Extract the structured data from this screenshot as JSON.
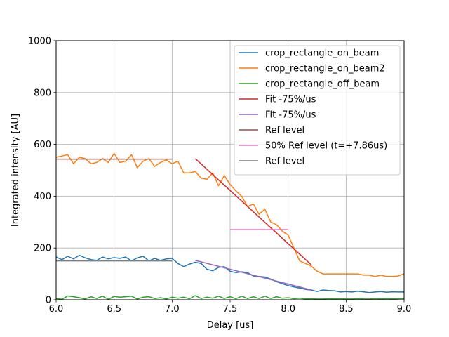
{
  "chart_data": {
    "type": "line",
    "title": "",
    "xlabel": "Delay [us]",
    "ylabel": "Integrated intensity [AU]",
    "xlim": [
      6.0,
      9.0
    ],
    "ylim": [
      0,
      1000
    ],
    "xticks": [
      6.0,
      6.5,
      7.0,
      7.5,
      8.0,
      8.5,
      9.0
    ],
    "xtick_labels": [
      "6.0",
      "6.5",
      "7.0",
      "7.5",
      "8.0",
      "8.5",
      "9.0"
    ],
    "yticks": [
      0,
      200,
      400,
      600,
      800,
      1000
    ],
    "ytick_labels": [
      "0",
      "200",
      "400",
      "600",
      "800",
      "1000"
    ],
    "grid": true,
    "legend_position": "top-right",
    "series": [
      {
        "name": "crop_rectangle_on_beam",
        "color": "#1f77b4",
        "x": [
          6.0,
          6.05,
          6.1,
          6.15,
          6.2,
          6.25,
          6.3,
          6.35,
          6.4,
          6.45,
          6.5,
          6.55,
          6.6,
          6.65,
          6.7,
          6.75,
          6.8,
          6.85,
          6.9,
          6.95,
          7.0,
          7.05,
          7.1,
          7.15,
          7.2,
          7.25,
          7.3,
          7.35,
          7.4,
          7.45,
          7.5,
          7.55,
          7.6,
          7.65,
          7.7,
          7.75,
          7.8,
          7.85,
          7.9,
          7.95,
          8.0,
          8.05,
          8.1,
          8.15,
          8.2,
          8.25,
          8.3,
          8.35,
          8.4,
          8.45,
          8.5,
          8.55,
          8.6,
          8.65,
          8.7,
          8.75,
          8.8,
          8.85,
          8.9,
          8.95,
          9.0
        ],
        "y": [
          165,
          155,
          168,
          158,
          172,
          162,
          155,
          152,
          165,
          158,
          163,
          160,
          165,
          150,
          162,
          168,
          150,
          160,
          152,
          158,
          160,
          140,
          128,
          138,
          145,
          140,
          118,
          112,
          125,
          128,
          110,
          105,
          108,
          105,
          92,
          90,
          88,
          80,
          70,
          62,
          55,
          50,
          45,
          40,
          38,
          32,
          38,
          36,
          35,
          30,
          32,
          30,
          33,
          31,
          28,
          30,
          32,
          29,
          31,
          30,
          30
        ]
      },
      {
        "name": "crop_rectangle_on_beam2",
        "color": "#ff7f0e",
        "x": [
          6.0,
          6.05,
          6.1,
          6.15,
          6.2,
          6.25,
          6.3,
          6.35,
          6.4,
          6.45,
          6.5,
          6.55,
          6.6,
          6.65,
          6.7,
          6.75,
          6.8,
          6.85,
          6.9,
          6.95,
          7.0,
          7.05,
          7.1,
          7.15,
          7.2,
          7.25,
          7.3,
          7.35,
          7.4,
          7.45,
          7.5,
          7.55,
          7.6,
          7.65,
          7.7,
          7.75,
          7.8,
          7.85,
          7.9,
          7.95,
          8.0,
          8.05,
          8.1,
          8.15,
          8.2,
          8.25,
          8.3,
          8.35,
          8.4,
          8.45,
          8.5,
          8.55,
          8.6,
          8.65,
          8.7,
          8.75,
          8.8,
          8.85,
          8.9,
          8.95,
          9.0
        ],
        "y": [
          550,
          555,
          560,
          525,
          550,
          545,
          525,
          530,
          545,
          530,
          565,
          530,
          535,
          560,
          510,
          535,
          545,
          515,
          530,
          540,
          525,
          535,
          490,
          490,
          495,
          470,
          465,
          490,
          440,
          480,
          445,
          420,
          400,
          360,
          370,
          330,
          350,
          300,
          290,
          265,
          250,
          200,
          150,
          140,
          130,
          110,
          100,
          100,
          100,
          100,
          100,
          100,
          100,
          95,
          95,
          90,
          95,
          90,
          90,
          92,
          100
        ]
      },
      {
        "name": "crop_rectangle_off_beam",
        "color": "#2ca02c",
        "x": [
          6.0,
          6.05,
          6.1,
          6.15,
          6.2,
          6.25,
          6.3,
          6.35,
          6.4,
          6.45,
          6.5,
          6.55,
          6.6,
          6.65,
          6.7,
          6.75,
          6.8,
          6.85,
          6.9,
          6.95,
          7.0,
          7.05,
          7.1,
          7.15,
          7.2,
          7.25,
          7.3,
          7.35,
          7.4,
          7.45,
          7.5,
          7.55,
          7.6,
          7.65,
          7.7,
          7.75,
          7.8,
          7.85,
          7.9,
          7.95,
          8.0,
          8.05,
          8.1,
          8.15,
          8.2,
          8.25,
          8.3,
          8.35,
          8.4,
          8.45,
          8.5,
          8.55,
          8.6,
          8.65,
          8.7,
          8.75,
          8.8,
          8.85,
          8.9,
          8.95,
          9.0
        ],
        "y": [
          5,
          2,
          15,
          12,
          8,
          3,
          12,
          5,
          14,
          2,
          13,
          10,
          12,
          14,
          3,
          10,
          12,
          5,
          8,
          3,
          10,
          6,
          10,
          4,
          16,
          5,
          10,
          6,
          14,
          5,
          12,
          4,
          14,
          5,
          12,
          5,
          14,
          5,
          12,
          6,
          8,
          4,
          6,
          3,
          4,
          3,
          3,
          4,
          3,
          4,
          3,
          3,
          4,
          3,
          3,
          4,
          3,
          4,
          3,
          4,
          5
        ]
      },
      {
        "name": "Fit -75%/us",
        "color": "#d62728",
        "x": [
          7.2,
          8.2
        ],
        "y": [
          545,
          135
        ]
      },
      {
        "name": "Fit -75%/us",
        "color": "#9467bd",
        "x": [
          7.2,
          8.2
        ],
        "y": [
          152,
          38
        ]
      },
      {
        "name": "Ref level",
        "color": "#8c564b",
        "x": [
          6.0,
          7.0
        ],
        "y": [
          543,
          543
        ]
      },
      {
        "name": "50% Ref level (t=+7.86us)",
        "color": "#e377c2",
        "x": [
          7.5,
          8.0
        ],
        "y": [
          271,
          271
        ]
      },
      {
        "name": "Ref level",
        "color": "#7f7f7f",
        "x": [
          6.0,
          7.0
        ],
        "y": [
          150,
          150
        ]
      }
    ]
  }
}
